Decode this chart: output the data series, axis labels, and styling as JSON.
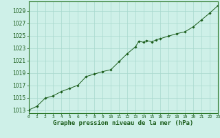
{
  "x_vals": [
    0,
    1,
    2,
    3,
    4,
    5,
    6,
    7,
    8,
    9,
    10,
    11,
    12,
    13,
    13.4,
    14,
    14.3,
    15,
    15.5,
    16,
    17,
    18,
    19,
    20,
    21,
    22,
    23
  ],
  "y_vals": [
    1013.0,
    1013.6,
    1014.9,
    1015.3,
    1016.0,
    1016.5,
    1017.0,
    1018.4,
    1018.8,
    1019.2,
    1019.5,
    1020.8,
    1022.1,
    1023.2,
    1024.1,
    1023.9,
    1024.2,
    1024.0,
    1024.3,
    1024.5,
    1024.9,
    1025.3,
    1025.6,
    1026.4,
    1027.5,
    1028.6,
    1029.8
  ],
  "line_color": "#1a5c1a",
  "marker_color": "#1a5c1a",
  "bg_color": "#cef0e8",
  "grid_color": "#a8d8ce",
  "xlabel": "Graphe pression niveau de la mer (hPa)",
  "xlabel_color": "#1a5c1a",
  "ylabel_ticks": [
    1013,
    1015,
    1017,
    1019,
    1021,
    1023,
    1025,
    1027,
    1029
  ],
  "xtick_labels": [
    "0",
    "1",
    "2",
    "3",
    "4",
    "5",
    "6",
    "7",
    "8",
    "9",
    "10",
    "11",
    "12",
    "13",
    "14",
    "15",
    "16",
    "17",
    "18",
    "19",
    "20",
    "21",
    "22",
    "23"
  ],
  "xlim": [
    0,
    23
  ],
  "ylim": [
    1012.5,
    1030.5
  ],
  "tick_color": "#1a5c1a",
  "axis_color": "#2d7a2d",
  "ytick_fontsize": 5.5,
  "xtick_fontsize": 4.5,
  "xlabel_fontsize": 6.5
}
